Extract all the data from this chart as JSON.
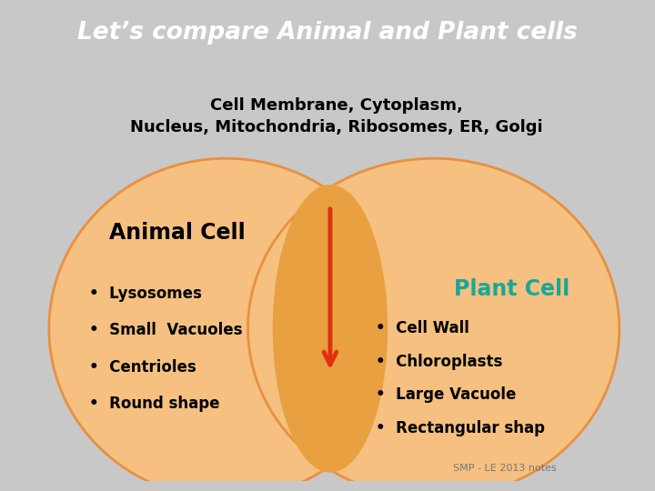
{
  "title": "Let’s compare Animal and Plant cells",
  "title_bg": "#E83A00",
  "title_color": "white",
  "title_fontsize": 19,
  "body_bg": "#C8C8C8",
  "body_inner_bg": "#F2F2F2",
  "circle_color": "#F5C080",
  "circle_edge": "#E89040",
  "overlap_color": "#E8A040",
  "shared_text_line1": "Cell Membrane, Cytoplasm,",
  "shared_text_line2": "Nucleus, Mitochondria, Ribosomes, ER, Golgi",
  "animal_label": "Animal Cell",
  "plant_label": "Plant Cell",
  "plant_label_color": "#18A898",
  "animal_items": [
    "Lysosomes",
    "Small  Vacuoles",
    "Centrioles",
    "Round shape"
  ],
  "plant_items": [
    "Cell Wall",
    "Chloroplasts",
    "Large Vacuole",
    "Rectangular shap"
  ],
  "footer": "SMP - LE 2013 notes",
  "arrow_color": "#E03010"
}
